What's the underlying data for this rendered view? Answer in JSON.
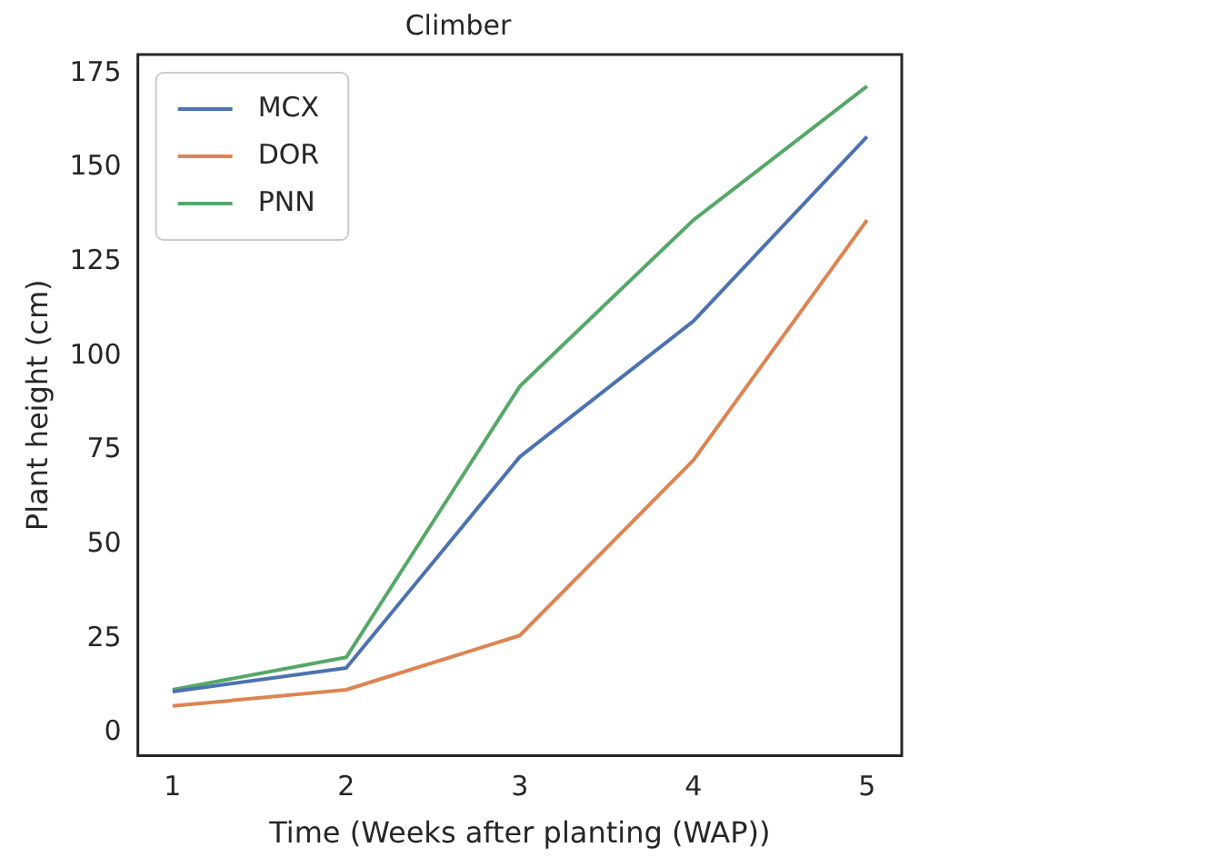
{
  "chart_data": {
    "type": "line",
    "title": "Climber",
    "xlabel": "Time (Weeks after planting (WAP))",
    "ylabel": "Plant height (cm)",
    "x": [
      1,
      2,
      3,
      4,
      5
    ],
    "series": [
      {
        "name": "MCX",
        "color": "#4c72b0",
        "values": [
          11,
          17.3,
          73.3,
          109.3,
          158.2
        ]
      },
      {
        "name": "DOR",
        "color": "#dd8452",
        "values": [
          7.2,
          11.5,
          25.9,
          72.4,
          136.1
        ]
      },
      {
        "name": "PNN",
        "color": "#55a868",
        "values": [
          11.5,
          20.1,
          92,
          136.1,
          171.6
        ]
      }
    ],
    "xlim": [
      0.8,
      5.2
    ],
    "xticks": [
      1,
      2,
      3,
      4,
      5
    ],
    "ylim": [
      -6,
      180
    ],
    "yticks": [
      0,
      25,
      50,
      75,
      100,
      125,
      150,
      175
    ],
    "legend": "top left",
    "grid": false
  }
}
